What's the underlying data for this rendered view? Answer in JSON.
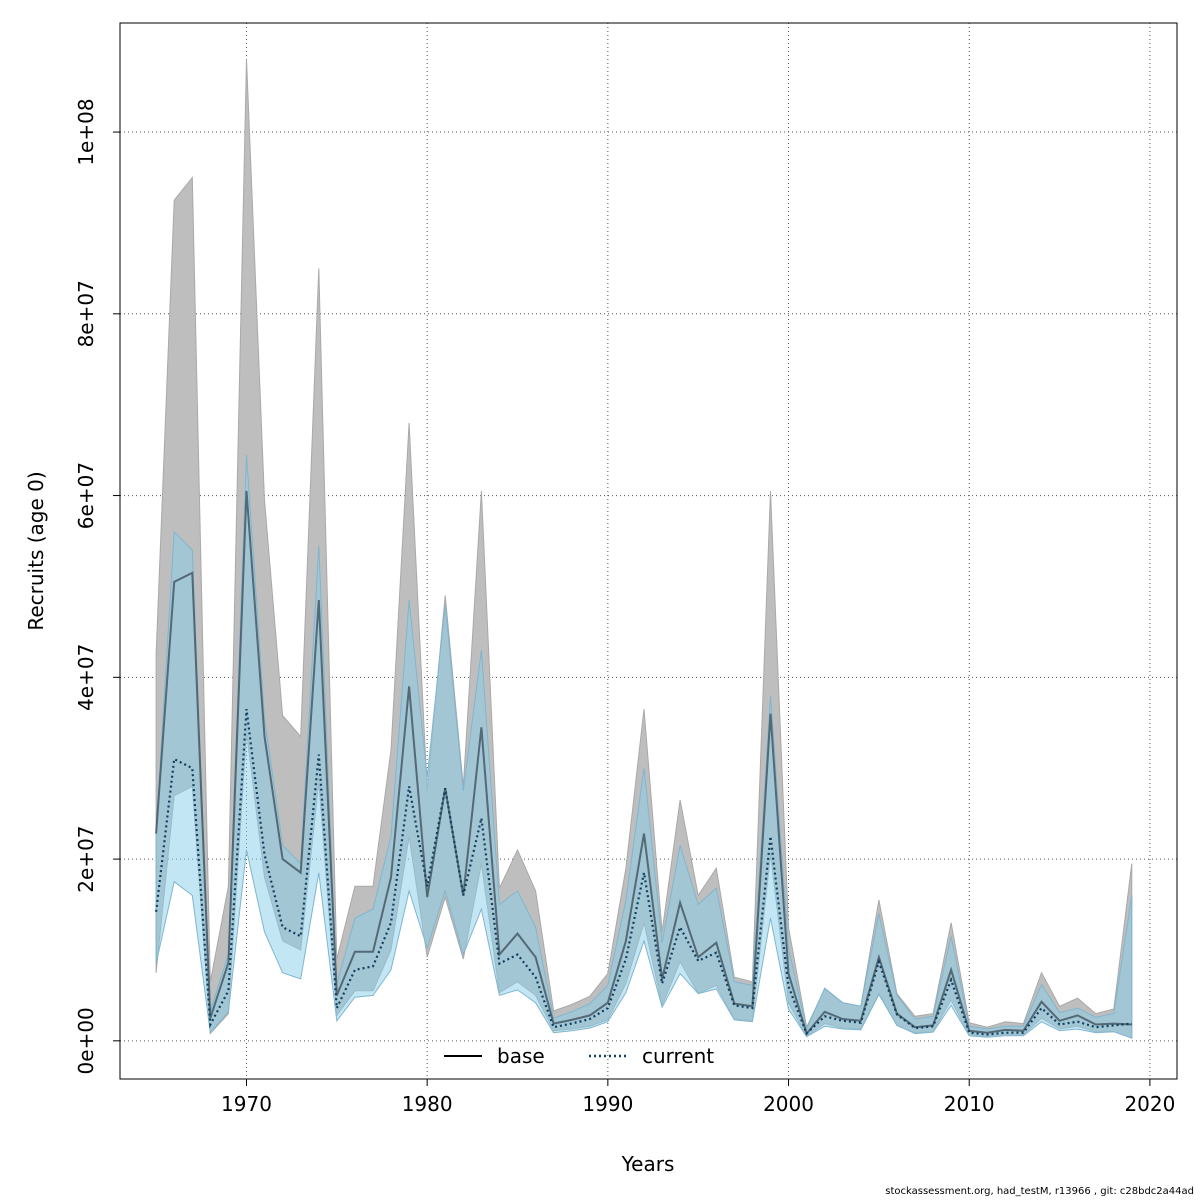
{
  "chart_data": {
    "type": "area",
    "title": "",
    "xlabel": "Years",
    "ylabel": "Recruits (age 0)",
    "xlim": [
      1963,
      2021.5
    ],
    "ylim": [
      -4200000,
      112000000
    ],
    "xticks": [
      1970,
      1980,
      1990,
      2000,
      2010,
      2020
    ],
    "xtick_labels": [
      "1970",
      "1980",
      "1990",
      "2000",
      "2010",
      "2020"
    ],
    "yticks": [
      0,
      20000000,
      40000000,
      60000000,
      80000000,
      100000000
    ],
    "ytick_labels": [
      "0e+00",
      "2e+07",
      "4e+07",
      "6e+07",
      "8e+07",
      "1e+08"
    ],
    "grid": true,
    "legend": {
      "position": "bottom-center",
      "entries": [
        "base",
        "current"
      ]
    },
    "x": [
      1965,
      1966,
      1967,
      1968,
      1969,
      1970,
      1971,
      1972,
      1973,
      1974,
      1975,
      1976,
      1977,
      1978,
      1979,
      1980,
      1981,
      1982,
      1983,
      1984,
      1985,
      1986,
      1987,
      1988,
      1989,
      1990,
      1991,
      1992,
      1993,
      1994,
      1995,
      1996,
      1997,
      1998,
      1999,
      2000,
      2001,
      2002,
      2003,
      2004,
      2005,
      2006,
      2007,
      2008,
      2009,
      2010,
      2011,
      2012,
      2013,
      2014,
      2015,
      2016,
      2017,
      2018,
      2019
    ],
    "series": [
      {
        "name": "base",
        "line_style": "solid",
        "band_color": "#bebebe",
        "values": [
          22800000,
          50500000,
          51500000,
          2500000,
          8600000,
          60500000,
          33500000,
          20000000,
          18500000,
          48500000,
          5000000,
          9800000,
          9800000,
          18000000,
          39000000,
          15800000,
          27800000,
          16000000,
          34500000,
          9500000,
          11800000,
          9200000,
          1900000,
          2300000,
          2800000,
          4200000,
          11000000,
          22800000,
          6800000,
          15200000,
          9200000,
          10800000,
          4100000,
          3800000,
          36000000,
          7400000,
          800000,
          3200000,
          2400000,
          2200000,
          9200000,
          3000000,
          1500000,
          1700000,
          7800000,
          1100000,
          900000,
          1200000,
          1100000,
          4300000,
          2200000,
          2800000,
          1800000,
          1900000,
          1800000
        ],
        "lower": [
          7500000,
          27000000,
          28000000,
          800000,
          3000000,
          34000000,
          18000000,
          11000000,
          10000000,
          28500000,
          2800000,
          5500000,
          5500000,
          10000000,
          22500000,
          9200000,
          15800000,
          9000000,
          19500000,
          5300000,
          6500000,
          5000000,
          1100000,
          1300000,
          1600000,
          2300000,
          6300000,
          13000000,
          3900000,
          8700000,
          5200000,
          6100000,
          2400000,
          2200000,
          20500000,
          4200000,
          500000,
          1900000,
          1400000,
          1300000,
          5200000,
          1700000,
          900000,
          1000000,
          4500000,
          600000,
          500000,
          700000,
          650000,
          2500000,
          1300000,
          1600000,
          1000000,
          1000000,
          300000
        ],
        "upper": [
          42500000,
          92500000,
          95000000,
          6500000,
          17000000,
          108000000,
          59500000,
          35800000,
          33500000,
          85000000,
          9000000,
          17000000,
          17000000,
          32000000,
          68000000,
          27500000,
          49000000,
          28000000,
          60500000,
          16800000,
          21000000,
          16500000,
          3300000,
          4000000,
          4900000,
          7400000,
          19000000,
          36500000,
          12000000,
          26500000,
          16000000,
          19000000,
          7000000,
          6500000,
          60500000,
          12500000,
          1500000,
          5700000,
          4200000,
          3800000,
          15500000,
          5200000,
          2700000,
          3000000,
          13000000,
          2000000,
          1500000,
          2100000,
          1900000,
          7500000,
          3800000,
          4700000,
          3000000,
          3500000,
          19500000
        ]
      },
      {
        "name": "current",
        "line_style": "dotted",
        "line_color": "#0f3f5e",
        "band_color": "#87ceeb",
        "values": [
          14200000,
          31000000,
          30000000,
          1800000,
          5500000,
          36500000,
          20500000,
          12500000,
          11500000,
          31500000,
          3600000,
          7800000,
          8200000,
          13000000,
          28000000,
          17000000,
          27800000,
          16000000,
          24500000,
          8500000,
          9500000,
          7000000,
          1500000,
          1900000,
          2400000,
          3600000,
          9000000,
          18500000,
          6300000,
          12500000,
          8800000,
          9700000,
          3900000,
          3600000,
          22500000,
          6000000,
          800000,
          2700000,
          2200000,
          2000000,
          8700000,
          2900000,
          1400000,
          1600000,
          6700000,
          900000,
          700000,
          900000,
          900000,
          3600000,
          1800000,
          2100000,
          1500000,
          1700000,
          1900000
        ],
        "lower": [
          8500000,
          17500000,
          16000000,
          900000,
          3200000,
          21000000,
          12000000,
          7500000,
          6800000,
          18500000,
          2200000,
          4800000,
          5000000,
          7800000,
          16500000,
          10200000,
          16500000,
          9500000,
          14500000,
          5000000,
          5600000,
          4200000,
          900000,
          1100000,
          1400000,
          2100000,
          5300000,
          11000000,
          3700000,
          7400000,
          5200000,
          5700000,
          2300000,
          2100000,
          13500000,
          3500000,
          450000,
          1600000,
          1300000,
          1200000,
          5100000,
          1700000,
          800000,
          950000,
          3900000,
          550000,
          400000,
          550000,
          550000,
          2100000,
          1100000,
          1300000,
          900000,
          1000000,
          300000
        ],
        "upper": [
          23000000,
          56000000,
          54000000,
          3300000,
          9500000,
          64500000,
          35500000,
          21500000,
          19500000,
          54500000,
          6200000,
          13500000,
          14500000,
          22500000,
          48500000,
          29000000,
          48000000,
          27500000,
          43000000,
          15000000,
          16500000,
          12500000,
          2500000,
          3200000,
          4100000,
          6100000,
          15500000,
          30000000,
          10800000,
          21500000,
          15000000,
          16800000,
          6500000,
          6100000,
          38000000,
          10200000,
          1300000,
          5800000,
          4200000,
          3800000,
          14000000,
          5000000,
          2400000,
          2700000,
          11500000,
          1600000,
          1300000,
          1600000,
          1600000,
          6200000,
          3100000,
          3600000,
          2600000,
          3000000,
          16000000
        ]
      }
    ]
  },
  "footer": "stockassessment.org, had_testM, r13966 , git: c28bdc2a44ad"
}
